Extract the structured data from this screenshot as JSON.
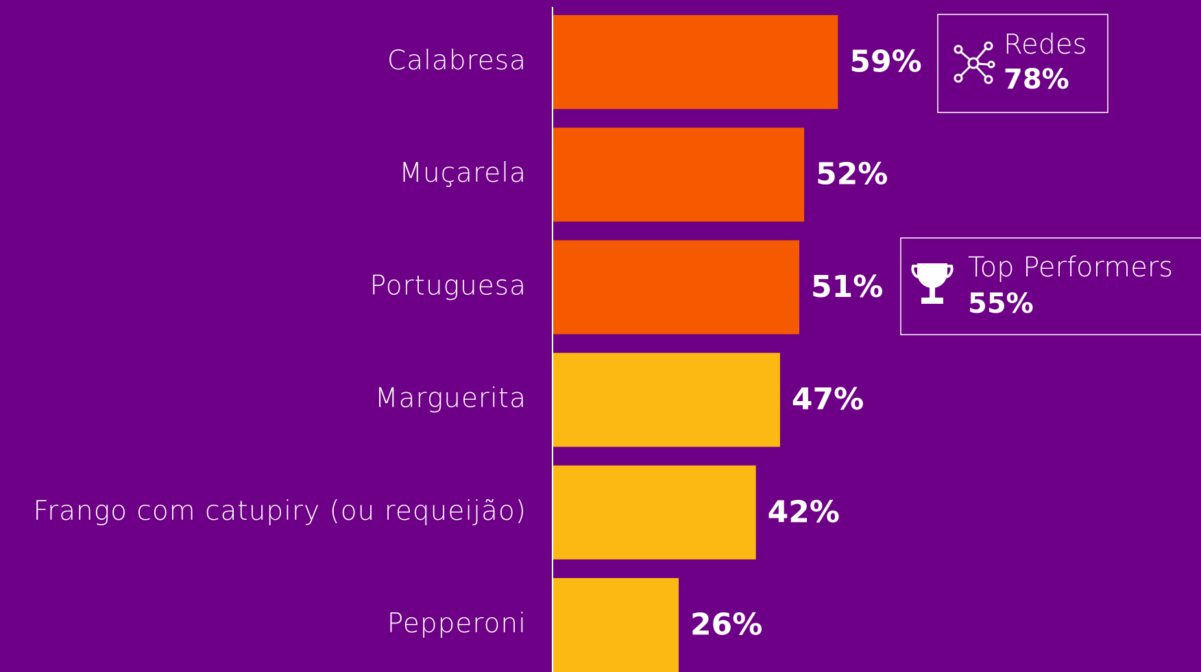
{
  "chart_data": {
    "type": "bar",
    "orientation": "horizontal",
    "categories": [
      "Calabresa",
      "Muçarela",
      "Portuguesa",
      "Marguerita",
      "Frango com catupiry (ou requeijão)",
      "Pepperoni"
    ],
    "values": [
      59,
      52,
      51,
      47,
      42,
      26
    ],
    "value_labels": [
      "59%",
      "52%",
      "51%",
      "47%",
      "42%",
      "26%"
    ],
    "colors": [
      "#f55a00",
      "#f55a00",
      "#f55a00",
      "#fdb913",
      "#fdb913",
      "#fdb913"
    ],
    "annotations": [
      {
        "text": "Redes",
        "value_text": "78%"
      },
      {
        "text": "Top Performers",
        "value_text": "55%"
      }
    ]
  }
}
